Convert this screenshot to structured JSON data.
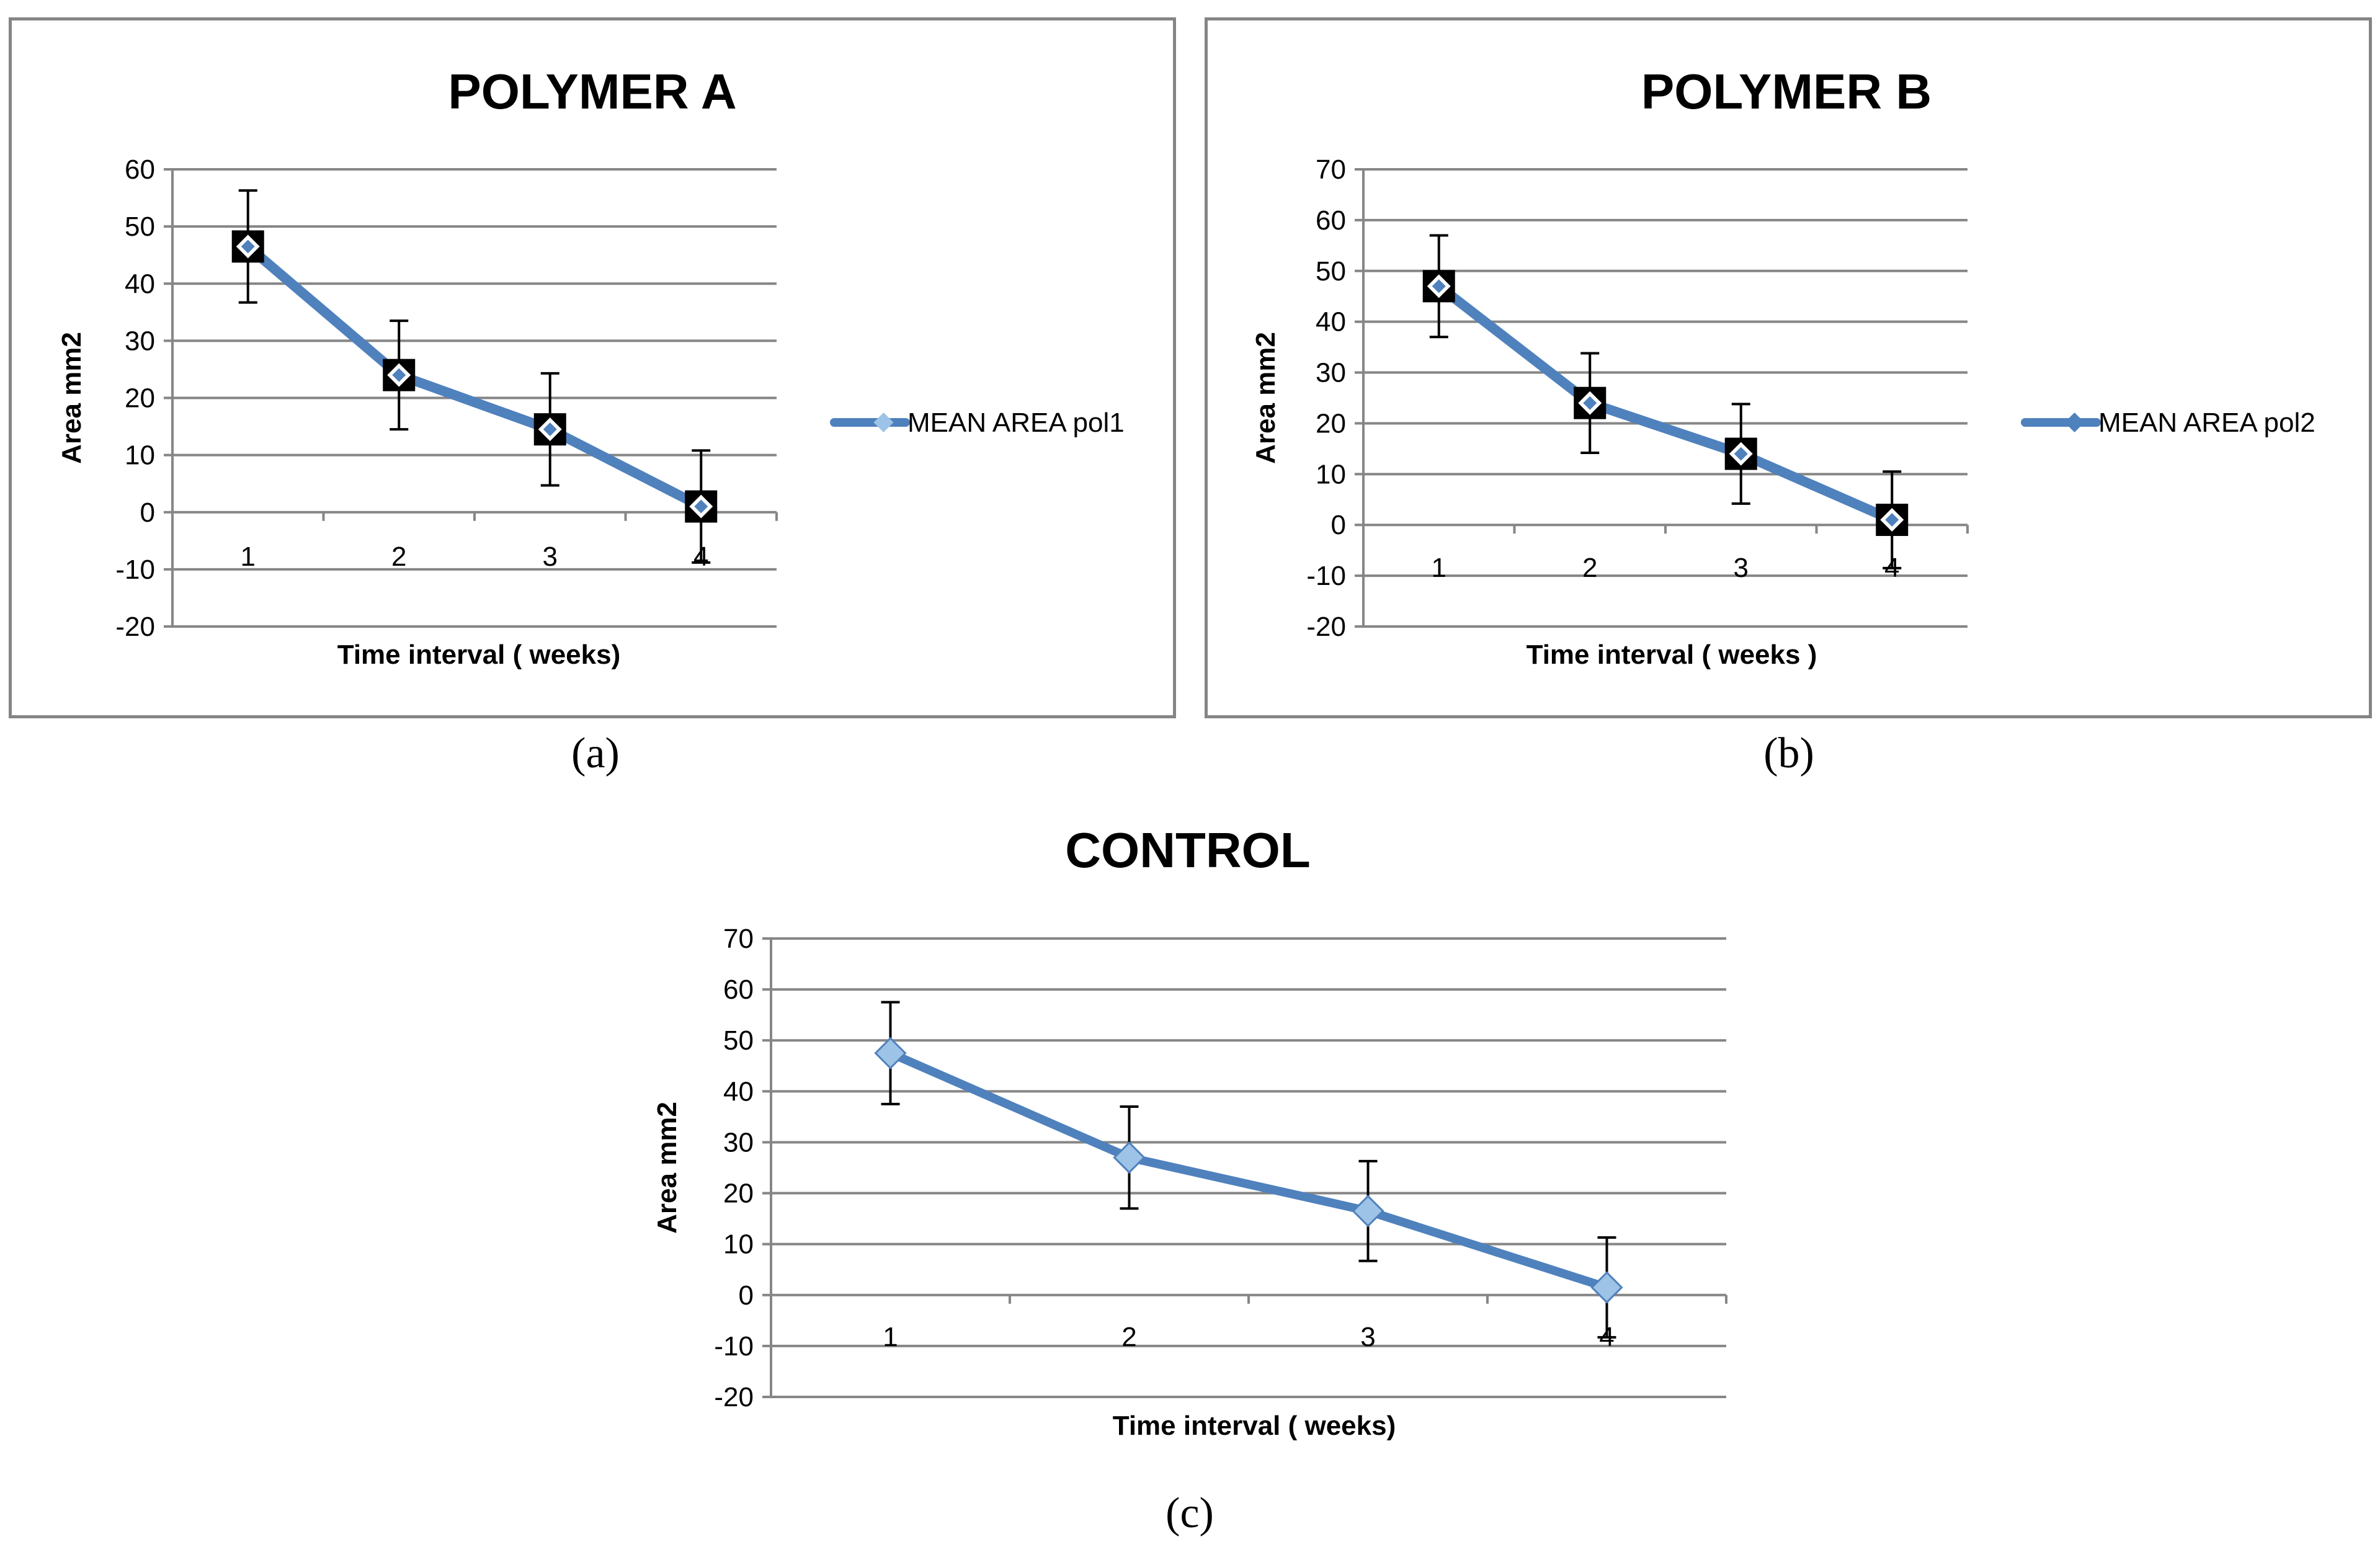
{
  "charts": [
    {
      "id": "a",
      "caption": "(a)",
      "chart_data": {
        "type": "line",
        "title": "POLYMER A",
        "xlabel": "Time interval ( weeks)",
        "ylabel": "Area mm2",
        "categories": [
          "1",
          "2",
          "3",
          "4"
        ],
        "ylim": [
          -20,
          60
        ],
        "yticks": [
          "60",
          "50",
          "40",
          "30",
          "20",
          "10",
          "0",
          "-10",
          "-20"
        ],
        "grid": true,
        "legend": "right",
        "series": [
          {
            "name": "MEAN AREA pol1",
            "values": [
              46.5,
              24,
              14.5,
              1
            ],
            "error": [
              9.8,
              9.5,
              9.8,
              9.8
            ]
          }
        ]
      }
    },
    {
      "id": "b",
      "caption": "(b)",
      "chart_data": {
        "type": "line",
        "title": "POLYMER B",
        "xlabel": "Time interval ( weeks )",
        "ylabel": "Area mm2",
        "categories": [
          "1",
          "2",
          "3",
          "4"
        ],
        "ylim": [
          -20,
          70
        ],
        "yticks": [
          "70",
          "60",
          "50",
          "40",
          "30",
          "20",
          "10",
          "0",
          "-10",
          "-20"
        ],
        "grid": true,
        "legend": "right",
        "series": [
          {
            "name": "MEAN AREA pol2",
            "values": [
              47,
              24,
              14,
              1
            ],
            "error": [
              10,
              9.8,
              9.8,
              9.5
            ]
          }
        ]
      }
    },
    {
      "id": "c",
      "caption": "(c)",
      "chart_data": {
        "type": "line",
        "title": "CONTROL",
        "xlabel": "Time interval ( weeks)",
        "ylabel": "Area mm2",
        "categories": [
          "1",
          "2",
          "3",
          "4"
        ],
        "ylim": [
          -20,
          70
        ],
        "yticks": [
          "70",
          "60",
          "50",
          "40",
          "30",
          "20",
          "10",
          "0",
          "-10",
          "-20"
        ],
        "grid": true,
        "legend": "none",
        "series": [
          {
            "name": "CONTROL",
            "values": [
              47.5,
              27,
              16.5,
              1.5
            ],
            "error": [
              10,
              10,
              9.8,
              9.8
            ]
          }
        ]
      }
    }
  ],
  "colors": {
    "line": "#4f81bd",
    "marker_light": "#9dc3e6",
    "grid": "#868686",
    "error": "#000000"
  }
}
